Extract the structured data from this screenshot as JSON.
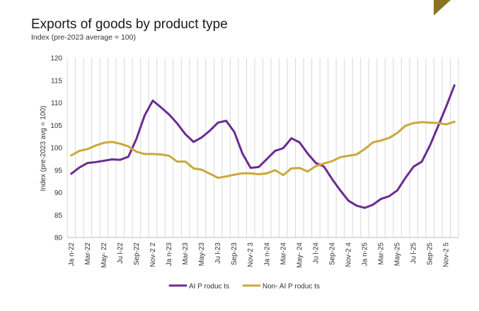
{
  "chart_data": {
    "type": "line",
    "title": "Exports of goods by product type",
    "subtitle": "Index (pre-2023 average = 100)",
    "xlabel": "",
    "ylabel": "Index (pre-2023 avg = 100)",
    "ylim": [
      80,
      120
    ],
    "yticks": [
      80,
      85,
      90,
      95,
      100,
      105,
      110,
      115,
      120
    ],
    "grid": "vertical",
    "legend_position": "bottom",
    "x": [
      "Jan-22",
      "Feb-22",
      "Mar-22",
      "Apr-22",
      "May-22",
      "Jun-22",
      "Jul-22",
      "Aug-22",
      "Sep-22",
      "Oct-22",
      "Nov-22",
      "Dec-22",
      "Jan-23",
      "Feb-23",
      "Mar-23",
      "Apr-23",
      "May-23",
      "Jun-23",
      "Jul-23",
      "Aug-23",
      "Sep-23",
      "Oct-23",
      "Nov-23",
      "Dec-23",
      "Jan-24",
      "Feb-24",
      "Mar-24",
      "Apr-24",
      "May-24",
      "Jun-24",
      "Jul-24",
      "Aug-24",
      "Sep-24",
      "Oct-24",
      "Nov-24",
      "Dec-24",
      "Jan-25",
      "Feb-25",
      "Mar-25",
      "Apr-25",
      "May-25",
      "Jun-25",
      "Jul-25",
      "Aug-25",
      "Sep-25",
      "Oct-25",
      "Nov-25",
      "Dec-25"
    ],
    "tick_labels": [
      "Ja n-22",
      "Mar-22",
      "May- 22",
      "Ju l-22",
      "Sep-22",
      "Nov-2 2",
      "Ja n-23",
      "Mar-23",
      "May-23",
      "Ju l-23",
      "Sep-23",
      "Nov-2 3",
      "Ja n-24",
      "Mar-24",
      "May- 24",
      "Ju l-24",
      "Sep-24",
      "Nov-2 4",
      "Ja n-25",
      "Mar-25",
      "May-25",
      "Ju l-25",
      "Sep-25",
      "Nov-2 5"
    ],
    "series": [
      {
        "name": "AI Products",
        "legend_label": "AI P roduc ts",
        "color": "#6b2c91",
        "values": [
          94.2,
          95.6,
          96.6,
          96.8,
          97.1,
          97.4,
          97.3,
          98.0,
          102.0,
          107.2,
          110.5,
          109.0,
          107.4,
          105.4,
          103.0,
          101.3,
          102.3,
          103.8,
          105.6,
          106.0,
          103.5,
          98.7,
          95.5,
          95.7,
          97.5,
          99.3,
          99.9,
          102.1,
          101.2,
          98.7,
          96.6,
          95.8,
          93.0,
          90.5,
          88.2,
          87.1,
          86.6,
          87.3,
          88.6,
          89.2,
          90.5,
          93.3,
          95.8,
          96.9,
          100.5,
          104.8,
          109.2,
          113.9
        ]
      },
      {
        "name": "Non-AI Products",
        "legend_label": "Non- AI P roduc ts",
        "color": "#c9a938",
        "values": [
          98.3,
          99.3,
          99.7,
          100.5,
          101.1,
          101.3,
          100.9,
          100.3,
          99.1,
          98.6,
          98.6,
          98.5,
          98.2,
          96.9,
          96.9,
          95.4,
          95.1,
          94.2,
          93.3,
          93.6,
          94.0,
          94.3,
          94.3,
          94.1,
          94.3,
          95.0,
          93.9,
          95.4,
          95.5,
          94.7,
          95.9,
          96.5,
          97.0,
          97.9,
          98.2,
          98.5,
          99.7,
          101.2,
          101.6,
          102.2,
          103.3,
          104.9,
          105.5,
          105.7,
          105.6,
          105.5,
          105.2,
          105.8
        ]
      }
    ]
  }
}
